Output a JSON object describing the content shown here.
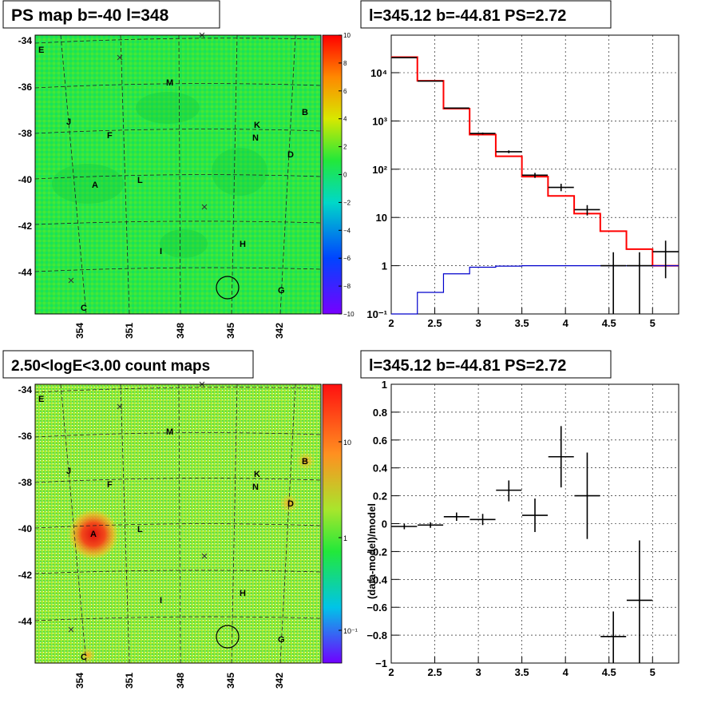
{
  "panels": {
    "top_left_title": "PS map b=-40 l=348",
    "bottom_left_title": "2.50<logE<3.00 count maps",
    "top_right_title": "l=345.12 b=-44.81 PS=2.72",
    "bottom_right_title": "l=345.12 b=-44.81 PS=2.72"
  },
  "sky_map": {
    "lat_tick_labels": [
      "-34",
      "-36",
      "-38",
      "-40",
      "-42",
      "-44"
    ],
    "lon_tick_labels": [
      "354",
      "351",
      "348",
      "345",
      "342"
    ],
    "source_labels": [
      "E",
      "M",
      "B",
      "J",
      "F",
      "K",
      "N",
      "D",
      "A",
      "L",
      "H",
      "I",
      "G",
      "C"
    ],
    "colors": {
      "background_green": "#22e83a",
      "grid_line": "#222222"
    }
  },
  "colorbars": {
    "ps_map_ticks": [
      "10",
      "8",
      "6",
      "4",
      "2",
      "0",
      "−2",
      "−4",
      "−6",
      "−8",
      "−10"
    ],
    "count_map_ticks": [
      "10",
      "1",
      "10⁻¹"
    ]
  },
  "chart_data": [
    {
      "type": "line",
      "title": "l=345.12 b=-44.81 PS=2.72",
      "xlabel": "",
      "ylabel": "",
      "log_y": true,
      "xlim": [
        2,
        5.3
      ],
      "ylim": [
        0.1,
        60000
      ],
      "x_tick_labels": [
        "2",
        "2.5",
        "3",
        "3.5",
        "4",
        "4.5",
        "5"
      ],
      "y_tick_labels": [
        "10⁻¹",
        "1",
        "10",
        "10²",
        "10³",
        "10⁴"
      ],
      "bin_edges": [
        2.0,
        2.3,
        2.6,
        2.9,
        3.2,
        3.5,
        3.8,
        4.1,
        4.4,
        4.7,
        5.0,
        5.3
      ],
      "series": [
        {
          "color": "#ff0000",
          "style": "step",
          "values": [
            21000,
            6800,
            1800,
            520,
            185,
            70,
            28,
            12,
            5.2,
            2.2,
            1.0
          ]
        },
        {
          "color": "#0000cc",
          "style": "step",
          "values": [
            0.1,
            0.28,
            0.68,
            0.93,
            0.98,
            1.0,
            1.0,
            1.0,
            1.0,
            1.0,
            1.0
          ]
        },
        {
          "color": "#000000",
          "style": "error",
          "points": [
            {
              "x": 2.15,
              "y": 20500,
              "ylo": 20300,
              "yhi": 20700
            },
            {
              "x": 2.45,
              "y": 6700,
              "ylo": 6600,
              "yhi": 6800
            },
            {
              "x": 2.75,
              "y": 1850,
              "ylo": 1800,
              "yhi": 1900
            },
            {
              "x": 3.05,
              "y": 550,
              "ylo": 525,
              "yhi": 575
            },
            {
              "x": 3.35,
              "y": 230,
              "ylo": 215,
              "yhi": 245
            },
            {
              "x": 3.65,
              "y": 75,
              "ylo": 66,
              "yhi": 84
            },
            {
              "x": 3.95,
              "y": 42,
              "ylo": 35,
              "yhi": 50
            },
            {
              "x": 4.25,
              "y": 14.5,
              "ylo": 11,
              "yhi": 18
            },
            {
              "x": 4.55,
              "y": 1.0,
              "ylo": 0.1,
              "yhi": 1.9
            },
            {
              "x": 4.85,
              "y": 1.0,
              "ylo": 0.1,
              "yhi": 1.9
            },
            {
              "x": 5.15,
              "y": 1.95,
              "ylo": 0.55,
              "yhi": 3.3
            }
          ]
        }
      ]
    },
    {
      "type": "scatter",
      "title": "l=345.12 b=-44.81 PS=2.72",
      "xlabel": "",
      "ylabel": "(data-model)/model",
      "xlim": [
        2,
        5.3
      ],
      "ylim": [
        -1,
        1
      ],
      "x_tick_labels": [
        "2",
        "2.5",
        "3",
        "3.5",
        "4",
        "4.5",
        "5"
      ],
      "y_tick_labels": [
        "1",
        "0.8",
        "0.6",
        "0.4",
        "0.2",
        "0",
        "−0.2",
        "−0.4",
        "−0.6",
        "−0.8",
        "−1"
      ],
      "points": [
        {
          "x": 2.15,
          "y": -0.02,
          "ylo": -0.04,
          "yhi": 0.0
        },
        {
          "x": 2.45,
          "y": -0.01,
          "ylo": -0.03,
          "yhi": 0.01
        },
        {
          "x": 2.75,
          "y": 0.05,
          "ylo": 0.02,
          "yhi": 0.08
        },
        {
          "x": 3.05,
          "y": 0.03,
          "ylo": -0.01,
          "yhi": 0.07
        },
        {
          "x": 3.35,
          "y": 0.24,
          "ylo": 0.16,
          "yhi": 0.31
        },
        {
          "x": 3.65,
          "y": 0.06,
          "ylo": -0.06,
          "yhi": 0.18
        },
        {
          "x": 3.95,
          "y": 0.48,
          "ylo": 0.26,
          "yhi": 0.7
        },
        {
          "x": 4.25,
          "y": 0.2,
          "ylo": -0.11,
          "yhi": 0.51
        },
        {
          "x": 4.55,
          "y": -0.81,
          "ylo": -1.0,
          "yhi": -0.63
        },
        {
          "x": 4.85,
          "y": -0.55,
          "ylo": -1.0,
          "yhi": -0.12
        }
      ]
    }
  ]
}
